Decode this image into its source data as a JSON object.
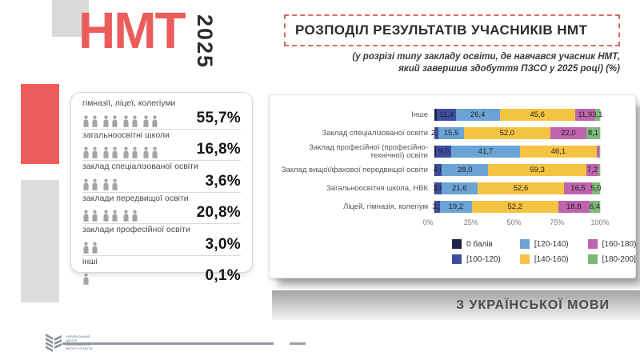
{
  "brand": {
    "nmt": "НМТ",
    "year": "2025"
  },
  "header": {
    "title": "РОЗПОДІЛ РЕЗУЛЬТАТІВ УЧАСНИКІВ НМТ",
    "subtitle_line1": "(у розрізі типу закладу освіти, де навчався учасник НМТ,",
    "subtitle_line2": "який завершив здобуття ПЗСО  у 2025 році) (%)"
  },
  "stats_panel": {
    "rows": [
      {
        "label": "гімназії, ліцеї, колегіуми",
        "value": "55,7%",
        "icons": 8
      },
      {
        "label": "загальноосвітні школи",
        "value": "16,8%",
        "icons": 8
      },
      {
        "label": "заклад спеціалізованої освіти",
        "value": "3,6%",
        "icons": 4
      },
      {
        "label": "заклади передвищої освіти",
        "value": "20,8%",
        "icons": 6
      },
      {
        "label": "заклади професійної освіти",
        "value": "3,0%",
        "icons": 2
      },
      {
        "label": "інші",
        "value": "0,1%",
        "icons": 1
      }
    ]
  },
  "chart_data": {
    "type": "bar",
    "orientation": "horizontal-stacked",
    "title": "",
    "xlabel": "",
    "ylabel": "",
    "xlim": [
      0,
      100
    ],
    "x_ticks": [
      "0%",
      "25%",
      "50%",
      "75%",
      "100%"
    ],
    "grid": true,
    "legend_position": "bottom",
    "categories": [
      "Інше",
      "Заклад спеціалізованої освіти",
      "Заклад професійної (професійно-технічної) освіти",
      "Заклад вищої/фахової передвищої освіти",
      "Загальноосвітня школа, НВК",
      "Ліцей,  гімназія, колегіум"
    ],
    "series": [
      {
        "name": "0 балів",
        "color": "#1e2248",
        "values": [
          1.6,
          0.1,
          1.1,
          0.5,
          0.5,
          0.3
        ],
        "labels": [
          "",
          "",
          "",
          "",
          "",
          ""
        ]
      },
      {
        "name": "[100-120)",
        "color": "#3c4ea0",
        "values": [
          11.4,
          2.3,
          9.0,
          4.0,
          3.8,
          3.1
        ],
        "labels": [
          "11,4",
          "2,3",
          "9,0",
          "4,0",
          "3,8",
          "3,1"
        ]
      },
      {
        "name": "[120-140)",
        "color": "#6ba3d6",
        "values": [
          26.4,
          15.5,
          41.7,
          28.0,
          21.6,
          19.2
        ],
        "labels": [
          "26,4",
          "15,5",
          "41,7",
          "28,0",
          "21,6",
          "19,2"
        ]
      },
      {
        "name": "[140-160)",
        "color": "#f5c342",
        "values": [
          45.6,
          52.0,
          46.1,
          59.3,
          52.6,
          52.2
        ],
        "labels": [
          "45,6",
          "52,0",
          "46,1",
          "59,3",
          "52,6",
          "52,2"
        ]
      },
      {
        "name": "[160-180)",
        "color": "#bf63ae",
        "values": [
          11.9,
          22.0,
          1.8,
          7.2,
          16.5,
          18.8
        ],
        "labels": [
          "11,9",
          "22,0",
          "",
          "7,2",
          "16,5",
          "18,8"
        ]
      },
      {
        "name": "[180-200]",
        "color": "#7db97a",
        "values": [
          3.1,
          8.1,
          0.3,
          1.0,
          5.0,
          6.4
        ],
        "labels": [
          "3,1",
          "8,1",
          "",
          "",
          "5,0",
          "6,4"
        ]
      }
    ]
  },
  "footer": {
    "subject": "З УКРАЇНСЬКОЇ МОВИ",
    "logo_lines": [
      "УКРАЇНСЬКИЙ",
      "ЦЕНТР",
      "ОЦІНЮВАННЯ",
      "ЯКОСТІ ОСВІТИ"
    ]
  },
  "colors": {
    "accent_red": "#ed5c5c",
    "decor_gray": "#d9d9d9",
    "banner_gray_top": "#a3a3a3",
    "banner_gray_bottom": "#f3f3f3"
  }
}
